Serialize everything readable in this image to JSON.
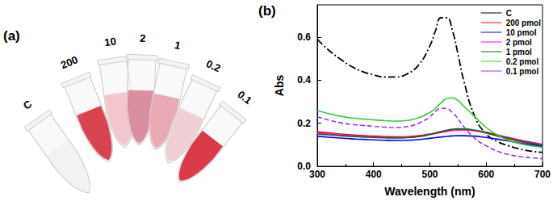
{
  "panel_a": {
    "label": "(a)",
    "tubes": [
      "C",
      "200",
      "10",
      "2",
      "1",
      "0.2",
      "0.1"
    ]
  },
  "chart_data": {
    "type": "line",
    "title": "(b)",
    "x_label": "Wavelength (nm)",
    "y_label": "Abs",
    "x": [
      300,
      320,
      340,
      360,
      380,
      400,
      420,
      440,
      460,
      480,
      500,
      510,
      520,
      530,
      540,
      550,
      560,
      580,
      600,
      620,
      640,
      660,
      680,
      700
    ],
    "xlim": [
      300,
      700
    ],
    "xticks": [
      300,
      400,
      500,
      600,
      700
    ],
    "ylim": [
      0,
      0.75
    ],
    "yticks": [
      {
        "value": 0,
        "label": "0.0"
      },
      0.2,
      0.4,
      0.6
    ],
    "grid": false,
    "legend": "upper right",
    "series": [
      {
        "name": "C",
        "color": "#000000",
        "line_style": "dashdot",
        "values": [
          0.59,
          0.54,
          0.5,
          0.465,
          0.44,
          0.425,
          0.415,
          0.415,
          0.43,
          0.47,
          0.56,
          0.63,
          0.69,
          0.69,
          0.63,
          0.52,
          0.4,
          0.23,
          0.15,
          0.115,
          0.095,
          0.08,
          0.07,
          0.065
        ]
      },
      {
        "name": "200 pmol",
        "color": "#ff0000",
        "line_style": "solid",
        "values": [
          0.16,
          0.155,
          0.15,
          0.146,
          0.143,
          0.14,
          0.138,
          0.137,
          0.138,
          0.142,
          0.15,
          0.155,
          0.16,
          0.165,
          0.168,
          0.17,
          0.17,
          0.165,
          0.155,
          0.14,
          0.128,
          0.115,
          0.105,
          0.095
        ]
      },
      {
        "name": "10 pmol",
        "color": "#0000ff",
        "line_style": "solid",
        "values": [
          0.14,
          0.135,
          0.131,
          0.128,
          0.125,
          0.123,
          0.121,
          0.12,
          0.121,
          0.124,
          0.13,
          0.133,
          0.136,
          0.139,
          0.141,
          0.142,
          0.142,
          0.14,
          0.134,
          0.126,
          0.117,
          0.108,
          0.1,
          0.092
        ]
      },
      {
        "name": "2 pmol",
        "color": "#ff00ff",
        "line_style": "solid",
        "values": [
          0.155,
          0.15,
          0.146,
          0.142,
          0.139,
          0.137,
          0.135,
          0.134,
          0.135,
          0.139,
          0.147,
          0.152,
          0.157,
          0.162,
          0.166,
          0.168,
          0.169,
          0.166,
          0.158,
          0.146,
          0.134,
          0.122,
          0.112,
          0.102
        ]
      },
      {
        "name": "1 pmol",
        "color": "#0b6e0b",
        "line_style": "solid",
        "values": [
          0.15,
          0.146,
          0.142,
          0.139,
          0.136,
          0.134,
          0.132,
          0.131,
          0.133,
          0.138,
          0.148,
          0.155,
          0.162,
          0.168,
          0.172,
          0.174,
          0.174,
          0.168,
          0.157,
          0.143,
          0.13,
          0.118,
          0.108,
          0.098
        ]
      },
      {
        "name": "0.2 pmol",
        "color": "#33cc33",
        "line_style": "solid",
        "values": [
          0.26,
          0.245,
          0.233,
          0.225,
          0.22,
          0.216,
          0.212,
          0.21,
          0.213,
          0.225,
          0.25,
          0.27,
          0.295,
          0.315,
          0.318,
          0.305,
          0.28,
          0.23,
          0.18,
          0.145,
          0.12,
          0.105,
          0.095,
          0.088
        ]
      },
      {
        "name": "0.1 pmol",
        "color": "#9933ff",
        "line_style": "dashed",
        "values": [
          0.23,
          0.215,
          0.203,
          0.195,
          0.19,
          0.186,
          0.182,
          0.18,
          0.185,
          0.2,
          0.23,
          0.255,
          0.27,
          0.268,
          0.25,
          0.22,
          0.185,
          0.13,
          0.095,
          0.07,
          0.055,
          0.045,
          0.04,
          0.035
        ]
      }
    ]
  }
}
